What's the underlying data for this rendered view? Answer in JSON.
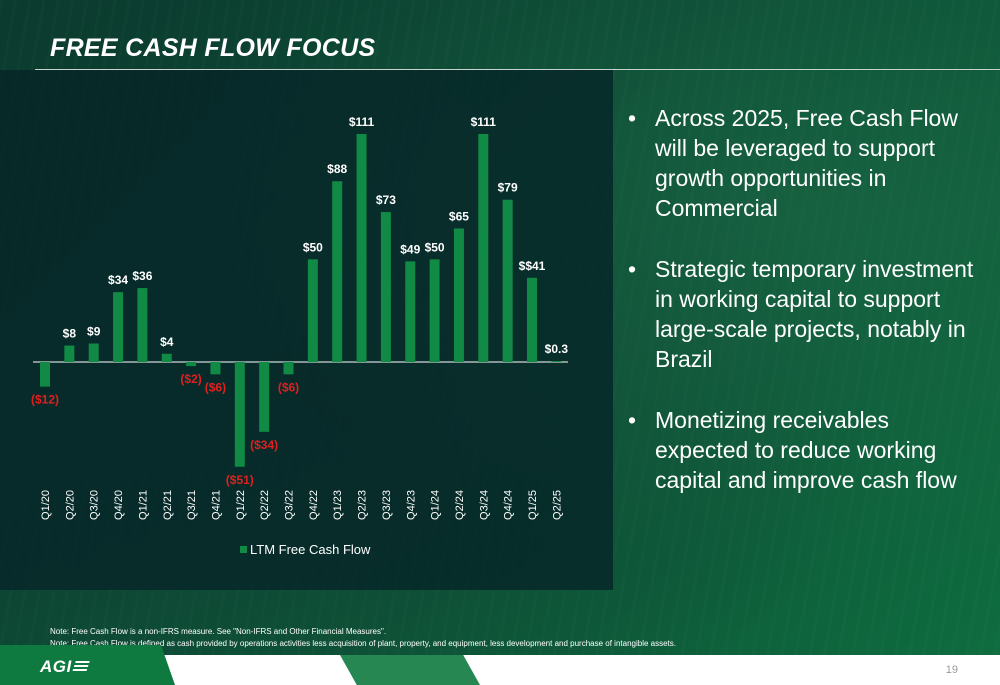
{
  "slide": {
    "title": "FREE CASH FLOW FOCUS",
    "page_number": "19",
    "logo_text": "AGI"
  },
  "bullets": [
    "Across 2025, Free Cash Flow will be leveraged to support growth opportunities in Commercial",
    "Strategic temporary investment in working capital to support large-scale projects, notably in Brazil",
    "Monetizing receivables expected to reduce working capital and improve cash flow"
  ],
  "bullet_glyph": "•",
  "notes": [
    "Note: Free Cash Flow is a non-IFRS measure. See \"Non-IFRS and Other Financial Measures\".",
    "Note: Free Cash Flow is defined as cash provided by operations activities less acquisition of plant, property, and equipment, less development and purchase of intangible assets."
  ],
  "colors": {
    "bar": "#108a44",
    "negative_label": "#e0201f",
    "positive_label": "#ffffff",
    "axis_label": "#ffffff"
  },
  "chart_data": {
    "type": "bar",
    "categories": [
      "Q1/20",
      "Q2/20",
      "Q3/20",
      "Q4/20",
      "Q1/21",
      "Q2/21",
      "Q3/21",
      "Q4/21",
      "Q1/22",
      "Q2/22",
      "Q3/22",
      "Q4/22",
      "Q1/23",
      "Q2/23",
      "Q3/23",
      "Q4/23",
      "Q1/24",
      "Q2/24",
      "Q3/24",
      "Q4/24",
      "Q1/25",
      "Q2/25"
    ],
    "series": [
      {
        "name": "LTM Free Cash Flow",
        "values": [
          -12,
          8,
          9,
          34,
          36,
          4,
          -2,
          -6,
          -51,
          -34,
          -6,
          50,
          88,
          111,
          73,
          49,
          50,
          65,
          111,
          79,
          41,
          0.3
        ]
      }
    ],
    "data_labels": [
      "($12)",
      "$8",
      "$9",
      "$34",
      "$36",
      "$4",
      "($2)",
      "($6)",
      "($51)",
      "($34)",
      "($6)",
      "$50",
      "$88",
      "$111",
      "$73",
      "$49",
      "$50",
      "$65",
      "$111",
      "$79",
      "$$41",
      "$0.3"
    ],
    "legend": "bottom-center",
    "grid": false,
    "ylim": [
      -55,
      115
    ]
  }
}
